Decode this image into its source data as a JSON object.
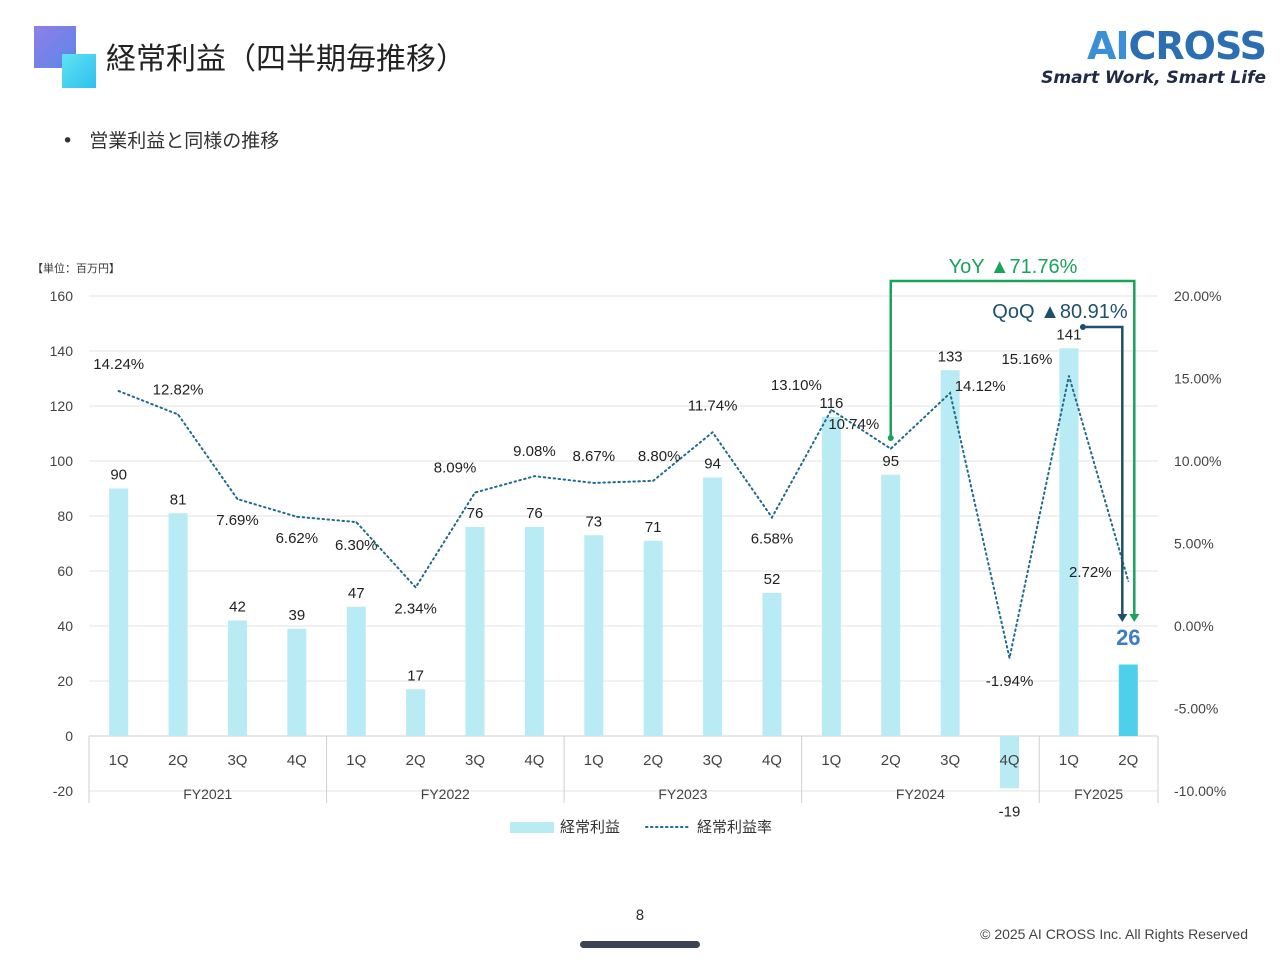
{
  "header": {
    "title": "経常利益（四半期毎推移）",
    "brand_name_ai": "AI",
    "brand_name_rest": "CROSS",
    "brand_tagline": "Smart Work, Smart Life"
  },
  "bullet": {
    "text": "営業利益と同様の推移"
  },
  "footer": {
    "page_number": "8",
    "copyright": "© 2025 AI CROSS Inc. All Rights Reserved"
  },
  "colors": {
    "bar": "#b9ebf4",
    "bar_highlight": "#4fd0ea",
    "line": "#1f6b8f",
    "yoy": "#1aa35d",
    "qoq": "#1f4f6e"
  },
  "chart_data": {
    "type": "bar",
    "unit_label": "【単位：百万円】",
    "quarters": [
      "1Q",
      "2Q",
      "3Q",
      "4Q",
      "1Q",
      "2Q",
      "3Q",
      "4Q",
      "1Q",
      "2Q",
      "3Q",
      "4Q",
      "1Q",
      "2Q",
      "3Q",
      "4Q",
      "1Q",
      "2Q"
    ],
    "years": [
      {
        "label": "FY2021",
        "count": 4
      },
      {
        "label": "FY2022",
        "count": 4
      },
      {
        "label": "FY2023",
        "count": 4
      },
      {
        "label": "FY2024",
        "count": 4
      },
      {
        "label": "FY2025",
        "count": 2
      }
    ],
    "series": [
      {
        "name": "経常利益",
        "type": "bar",
        "axis": "left",
        "values": [
          90,
          81,
          42,
          39,
          47,
          17,
          76,
          76,
          73,
          71,
          94,
          52,
          116,
          95,
          133,
          -19,
          141,
          26
        ],
        "labels": [
          "90",
          "81",
          "42",
          "39",
          "47",
          "17",
          "76",
          "76",
          "73",
          "71",
          "94",
          "52",
          "116",
          "95",
          "133",
          "-19",
          "141",
          "26"
        ]
      },
      {
        "name": "経常利益率",
        "type": "line",
        "axis": "right",
        "values": [
          14.24,
          12.82,
          7.69,
          6.62,
          6.3,
          2.34,
          8.09,
          9.08,
          8.67,
          8.8,
          11.74,
          6.58,
          13.1,
          10.74,
          14.12,
          -1.94,
          15.16,
          2.72
        ],
        "labels": [
          "14.24%",
          "12.82%",
          "7.69%",
          "6.62%",
          "6.30%",
          "2.34%",
          "8.09%",
          "9.08%",
          "8.67%",
          "8.80%",
          "11.74%",
          "6.58%",
          "13.10%",
          "10.74%",
          "14.12%",
          "-1.94%",
          "15.16%",
          "2.72%"
        ]
      }
    ],
    "y_left": {
      "min": -20,
      "max": 160,
      "ticks": [
        "160",
        "140",
        "120",
        "100",
        "80",
        "60",
        "40",
        "20",
        "0",
        "-20"
      ]
    },
    "y_right": {
      "min": -10,
      "max": 20,
      "ticks": [
        "20.00%",
        "15.00%",
        "10.00%",
        "5.00%",
        "0.00%",
        "-5.00%",
        "-10.00%"
      ]
    },
    "grid": true,
    "legend_position": "bottom",
    "annotations": [
      {
        "text": "YoY ▲71.76%",
        "from_index": 13,
        "to_index": 17,
        "color": "#1aa35d"
      },
      {
        "text": "QoQ ▲80.91%",
        "from_index": 16,
        "to_index": 17,
        "color": "#1f4f6e"
      }
    ]
  }
}
